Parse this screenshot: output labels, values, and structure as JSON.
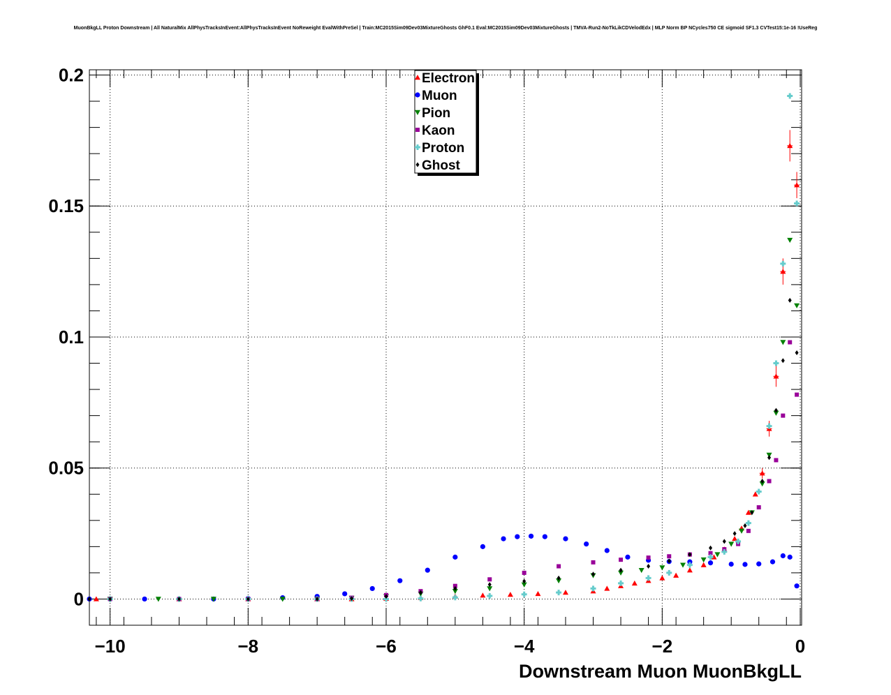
{
  "chart_data": {
    "type": "scatter",
    "title": "MuonBkgLL Proton Downstream | All NaturalMix AllPhysTracksInEvent:AllPhysTracksInEvent NoReweight EvalWithPreSel | Train:MC2015Sim09Dev03MixtureGhosts GhF0.1 Eval:MC2015Sim09Dev03MixtureGhosts | TMVA-Run2-NoTkLikCDVelodEdx | MLP Norm BP NCycles750 CE sigmoid SF1.3 CVTest15:1e-16 !UseReg",
    "xlabel": "Downstream Muon MuonBkgLL",
    "ylabel": "",
    "xlim": [
      -10.3,
      0.02
    ],
    "ylim": [
      -0.01,
      0.202
    ],
    "grid": true,
    "legend_position": "top-center",
    "x_ticks": [
      {
        "value": -10,
        "label": "−10"
      },
      {
        "value": -8,
        "label": "−8"
      },
      {
        "value": -6,
        "label": "−6"
      },
      {
        "value": -4,
        "label": "−4"
      },
      {
        "value": -2,
        "label": "−2"
      },
      {
        "value": 0,
        "label": "0"
      }
    ],
    "y_ticks": [
      {
        "value": 0,
        "label": "0"
      },
      {
        "value": 0.05,
        "label": "0.05"
      },
      {
        "value": 0.1,
        "label": "0.1"
      },
      {
        "value": 0.15,
        "label": "0.15"
      },
      {
        "value": 0.2,
        "label": "0.2"
      }
    ],
    "series": [
      {
        "name": "Electron",
        "color": "#ff0000",
        "marker": "triangle-up",
        "x": [
          -10.2,
          -9.0,
          -8.0,
          -7.0,
          -6.5,
          -6.0,
          -5.5,
          -5.0,
          -4.6,
          -4.2,
          -3.8,
          -3.4,
          -3.0,
          -2.8,
          -2.6,
          -2.4,
          -2.2,
          -2.0,
          -1.8,
          -1.6,
          -1.4,
          -1.25,
          -1.1,
          -0.95,
          -0.85,
          -0.75,
          -0.65,
          -0.55,
          -0.45,
          -0.35,
          -0.25,
          -0.15,
          -0.05
        ],
        "y": [
          0,
          0,
          0,
          0,
          0,
          0.0002,
          0.0005,
          0.001,
          0.0014,
          0.0017,
          0.002,
          0.0025,
          0.003,
          0.004,
          0.005,
          0.006,
          0.007,
          0.008,
          0.009,
          0.011,
          0.013,
          0.016,
          0.019,
          0.023,
          0.027,
          0.033,
          0.04,
          0.048,
          0.065,
          0.085,
          0.125,
          0.173,
          0.158
        ],
        "yerr": [
          0,
          0,
          0,
          0,
          0,
          0,
          0,
          0,
          0,
          0,
          0,
          0,
          0,
          0,
          0,
          0,
          0,
          0,
          0,
          0,
          0,
          0,
          0,
          0,
          0,
          0,
          0,
          0.002,
          0.003,
          0.004,
          0.005,
          0.006,
          0.005
        ]
      },
      {
        "name": "Muon",
        "color": "#0000ff",
        "marker": "circle",
        "x": [
          -10.3,
          -10.0,
          -9.5,
          -9.0,
          -8.5,
          -8.0,
          -7.5,
          -7.0,
          -6.6,
          -6.2,
          -5.8,
          -5.4,
          -5.0,
          -4.6,
          -4.3,
          -4.1,
          -3.9,
          -3.7,
          -3.4,
          -3.1,
          -2.8,
          -2.5,
          -2.2,
          -1.9,
          -1.6,
          -1.3,
          -1.0,
          -0.8,
          -0.6,
          -0.4,
          -0.25,
          -0.15,
          -0.05
        ],
        "y": [
          0,
          0,
          0,
          0,
          0,
          0.0002,
          0.0005,
          0.001,
          0.002,
          0.004,
          0.007,
          0.011,
          0.016,
          0.02,
          0.023,
          0.0238,
          0.024,
          0.0238,
          0.023,
          0.021,
          0.0185,
          0.016,
          0.0148,
          0.0143,
          0.0142,
          0.0138,
          0.0133,
          0.0132,
          0.0134,
          0.0142,
          0.0165,
          0.016,
          0.005
        ],
        "yerr": []
      },
      {
        "name": "Pion",
        "color": "#008000",
        "marker": "triangle-down",
        "x": [
          -10.0,
          -9.3,
          -8.5,
          -7.5,
          -7.0,
          -6.5,
          -6.0,
          -5.5,
          -5.0,
          -4.5,
          -4.0,
          -3.5,
          -3.0,
          -2.6,
          -2.3,
          -2.0,
          -1.7,
          -1.4,
          -1.2,
          -1.0,
          -0.85,
          -0.7,
          -0.55,
          -0.45,
          -0.35,
          -0.25,
          -0.15,
          -0.05
        ],
        "y": [
          0,
          0,
          0,
          0,
          0,
          0.0004,
          0.001,
          0.002,
          0.003,
          0.004,
          0.0055,
          0.007,
          0.009,
          0.01,
          0.011,
          0.012,
          0.013,
          0.015,
          0.017,
          0.021,
          0.026,
          0.033,
          0.044,
          0.055,
          0.071,
          0.098,
          0.137,
          0.112
        ],
        "yerr": []
      },
      {
        "name": "Kaon",
        "color": "#990099",
        "marker": "square",
        "x": [
          -10.0,
          -9.0,
          -8.0,
          -7.0,
          -6.5,
          -6.0,
          -5.5,
          -5.0,
          -4.5,
          -4.0,
          -3.5,
          -3.0,
          -2.6,
          -2.2,
          -1.9,
          -1.6,
          -1.3,
          -1.1,
          -0.9,
          -0.75,
          -0.6,
          -0.45,
          -0.35,
          -0.25,
          -0.15,
          -0.05
        ],
        "y": [
          0,
          0,
          0,
          0,
          0.0005,
          0.0015,
          0.003,
          0.005,
          0.0075,
          0.01,
          0.0125,
          0.014,
          0.015,
          0.0158,
          0.0163,
          0.017,
          0.0175,
          0.019,
          0.021,
          0.026,
          0.035,
          0.045,
          0.053,
          0.07,
          0.098,
          0.078
        ],
        "yerr": []
      },
      {
        "name": "Proton",
        "color": "#66cccc",
        "marker": "cross",
        "x": [
          -10.0,
          -9.0,
          -8.0,
          -7.0,
          -6.5,
          -6.0,
          -5.5,
          -5.0,
          -4.5,
          -4.0,
          -3.5,
          -3.0,
          -2.6,
          -2.2,
          -1.9,
          -1.6,
          -1.3,
          -1.1,
          -0.9,
          -0.75,
          -0.6,
          -0.45,
          -0.35,
          -0.25,
          -0.15,
          -0.05
        ],
        "y": [
          0,
          0,
          0,
          0,
          0,
          0,
          0.0002,
          0.0006,
          0.0012,
          0.0018,
          0.0025,
          0.004,
          0.006,
          0.008,
          0.01,
          0.013,
          0.016,
          0.018,
          0.022,
          0.029,
          0.041,
          0.066,
          0.09,
          0.128,
          0.192,
          0.151
        ],
        "yerr": []
      },
      {
        "name": "Ghost",
        "color": "#000000",
        "marker": "diamond",
        "x": [
          -10.3,
          -10.0,
          -9.0,
          -8.0,
          -7.0,
          -6.5,
          -6.0,
          -5.5,
          -5.0,
          -4.5,
          -4.0,
          -3.5,
          -3.0,
          -2.6,
          -2.2,
          -1.9,
          -1.6,
          -1.3,
          -1.1,
          -0.95,
          -0.8,
          -0.7,
          -0.55,
          -0.45,
          -0.35,
          -0.25,
          -0.15,
          -0.05
        ],
        "y": [
          0,
          0,
          0,
          0,
          0,
          0.0002,
          0.001,
          0.0025,
          0.004,
          0.0055,
          0.0068,
          0.008,
          0.0095,
          0.011,
          0.0125,
          0.0145,
          0.017,
          0.0195,
          0.022,
          0.025,
          0.028,
          0.033,
          0.045,
          0.054,
          0.072,
          0.091,
          0.114,
          0.094
        ],
        "yerr": []
      }
    ]
  }
}
